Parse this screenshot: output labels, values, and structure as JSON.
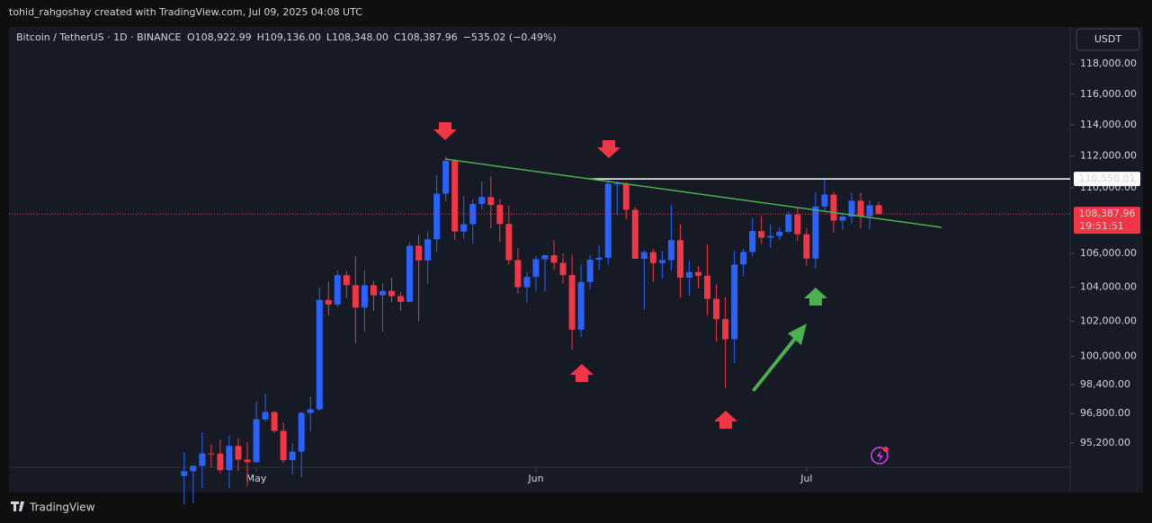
{
  "chart_data": {
    "type": "candlestick",
    "credit": "tohid_rahgoshay created with TradingView.com, Jul 09, 2025 04:08 UTC",
    "symbol": "Bitcoin / TetherUS · 1D · BINANCE",
    "ohlc_legend": [
      "O108,922.99",
      "H109,136.00",
      "L108,348.00",
      "C108,387.96",
      "−535.02 (−0.49%)"
    ],
    "currency": "USDT",
    "brand": "TradingView",
    "log_scale": true,
    "up_color": "#2962ff",
    "down_color": "#f23645",
    "categories": [
      null,
      null,
      null,
      null,
      null,
      null,
      null,
      null,
      "May",
      null,
      null,
      null,
      null,
      null,
      null,
      null,
      null,
      null,
      null,
      null,
      null,
      null,
      null,
      null,
      null,
      null,
      null,
      null,
      null,
      null,
      null,
      null,
      null,
      null,
      null,
      null,
      null,
      null,
      null,
      "Jun",
      null,
      null,
      null,
      null,
      null,
      null,
      null,
      null,
      null,
      null,
      null,
      null,
      null,
      null,
      null,
      null,
      null,
      null,
      null,
      null,
      null,
      null,
      null,
      null,
      null,
      null,
      null,
      null,
      null,
      "Jul",
      null,
      null,
      null,
      null,
      null,
      null,
      null,
      null
    ],
    "open": [
      93442,
      93691,
      93980,
      94638,
      94628,
      93749,
      95043,
      94310,
      94172,
      96489,
      96887,
      95856,
      94277,
      94733,
      96834,
      97032,
      103241,
      102971,
      104696,
      104106,
      102791,
      104103,
      103507,
      103763,
      103463,
      103126,
      106454,
      105573,
      106850,
      109643,
      111696,
      107318,
      107761,
      109004,
      109434,
      108938,
      107781,
      105589,
      103985,
      104591,
      105642,
      105882,
      105432,
      104696,
      101508,
      104288,
      105617,
      105734,
      110263,
      110274,
      108645,
      105671,
      106066,
      105414,
      105595,
      106794,
      104551,
      104886,
      104658,
      103297,
      102120,
      100963,
      105333,
      106083,
      107340,
      106947,
      107047,
      107296,
      108356,
      107146,
      105681,
      108849,
      109584,
      107984,
      108231,
      109203,
      108262,
      108922.99
    ],
    "high": [
      94696,
      94000,
      95768,
      95127,
      95369,
      95600,
      95461,
      95250,
      97437,
      97895,
      96935,
      96318,
      95199,
      96920,
      97732,
      103977,
      104324,
      104984,
      104937,
      105819,
      104976,
      104356,
      104192,
      104550,
      103709,
      106660,
      107108,
      107320,
      110797,
      111980,
      111800,
      109506,
      109298,
      110422,
      110718,
      109313,
      108910,
      106313,
      104900,
      105866,
      105935,
      106794,
      105999,
      105909,
      105333,
      105900,
      106488,
      110530,
      110400,
      110392,
      108813,
      106179,
      106252,
      106128,
      108952,
      107771,
      105550,
      105226,
      106524,
      104150,
      103400,
      106128,
      106290,
      108135,
      108272,
      107735,
      107577,
      108528,
      108789,
      107540,
      109730,
      110558,
      109767,
      108420,
      109700,
      109700,
      109216,
      109136
    ],
    "low": [
      91935,
      92000,
      92800,
      93900,
      93600,
      92800,
      93700,
      92910,
      94130,
      96350,
      95753,
      94128,
      93514,
      93377,
      95840,
      96950,
      102315,
      102818,
      103346,
      100718,
      101429,
      102602,
      101383,
      103100,
      102612,
      103105,
      102000,
      104184,
      106100,
      109177,
      106800,
      106875,
      106600,
      108670,
      107516,
      106681,
      105322,
      103621,
      103068,
      103752,
      103728,
      105000,
      104191,
      100372,
      101095,
      103871,
      105000,
      105318,
      108331,
      108064,
      105671,
      102664,
      104300,
      104494,
      104980,
      103371,
      103500,
      103929,
      102345,
      100837,
      98200,
      99613,
      104622,
      105808,
      106562,
      106356,
      106800,
      107200,
      106733,
      105250,
      105100,
      108500,
      107245,
      107429,
      107800,
      107500,
      107429,
      108348
    ],
    "close": [
      93691,
      93980,
      94638,
      94628,
      93749,
      95043,
      94310,
      94172,
      96489,
      96887,
      95856,
      94277,
      94733,
      96834,
      97032,
      103241,
      102971,
      104696,
      104106,
      102791,
      104103,
      103507,
      103763,
      103463,
      103126,
      106454,
      105573,
      106850,
      109643,
      111696,
      107318,
      107761,
      109004,
      109434,
      108938,
      107781,
      105589,
      103985,
      104591,
      105642,
      105882,
      105432,
      104696,
      101508,
      104288,
      105617,
      105734,
      110263,
      110274,
      108645,
      105671,
      106066,
      105414,
      105595,
      106794,
      104551,
      104886,
      104658,
      103297,
      102120,
      100963,
      105333,
      106083,
      107340,
      106947,
      107047,
      107296,
      108356,
      107146,
      105681,
      108849,
      109584,
      107984,
      108231,
      109203,
      108262,
      108922.99,
      108387.96
    ],
    "ylim": [
      93900,
      120500
    ],
    "yticks": [
      {
        "value": 95200,
        "label": "95,200.00"
      },
      {
        "value": 96800,
        "label": "96,800.00"
      },
      {
        "value": 98400,
        "label": "98,400.00"
      },
      {
        "value": 100000,
        "label": "100,000.00"
      },
      {
        "value": 102000,
        "label": "102,000.00"
      },
      {
        "value": 104000,
        "label": "104,000.00"
      },
      {
        "value": 106000,
        "label": "106,000.00"
      },
      {
        "value": 110000,
        "label": "110,000.00"
      },
      {
        "value": 112000,
        "label": "112,000.00"
      },
      {
        "value": 114000,
        "label": "114,000.00"
      },
      {
        "value": 116000,
        "label": "116,000.00"
      },
      {
        "value": 118000,
        "label": "118,000.00"
      }
    ],
    "marked_level": {
      "value": 110558.01,
      "label": "110,558.01"
    },
    "last_price": {
      "value": 108387.96,
      "label": "108,387.96",
      "countdown": "19:51:51"
    }
  }
}
